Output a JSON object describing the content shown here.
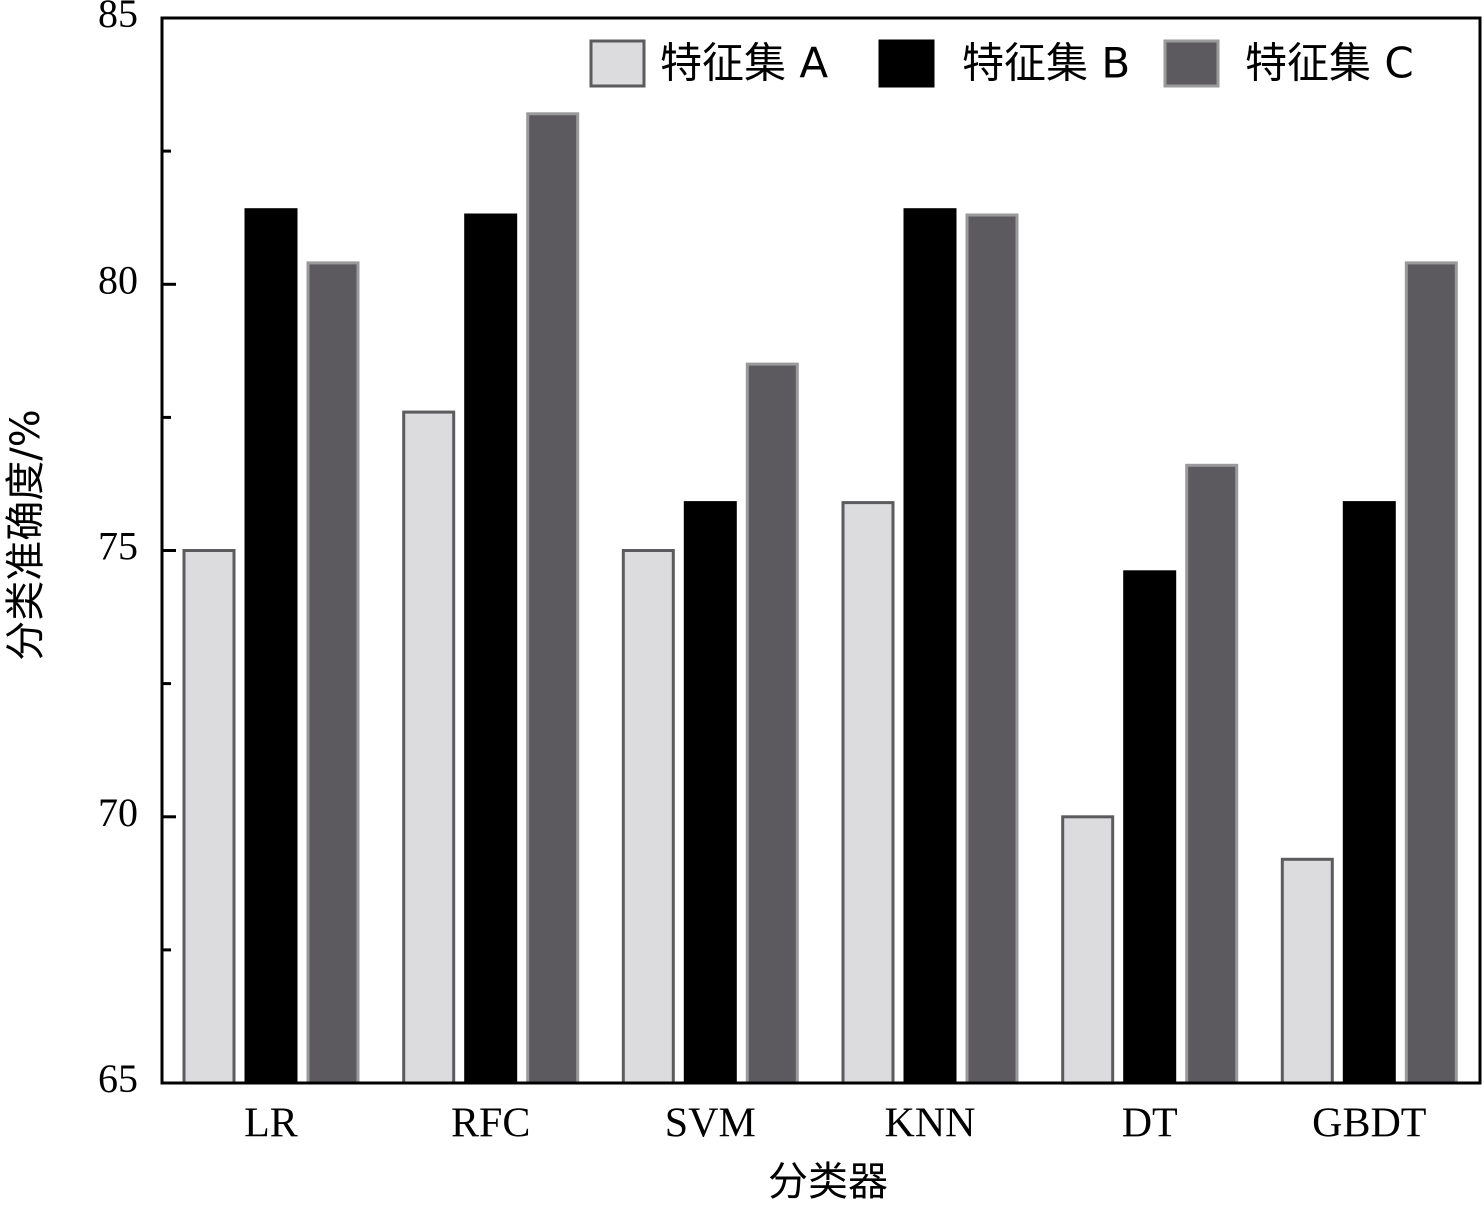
{
  "chart_data": {
    "type": "bar",
    "categories": [
      "LR",
      "RFC",
      "SVM",
      "KNN",
      "DT",
      "GBDT"
    ],
    "series": [
      {
        "name": "特征集 A",
        "values": [
          75.0,
          77.6,
          75.0,
          75.9,
          70.0,
          69.2
        ],
        "color": "#dcdbdd",
        "stroke": "#5c5b5e"
      },
      {
        "name": "特征集 B",
        "values": [
          81.4,
          81.3,
          75.9,
          81.4,
          74.6,
          75.9
        ],
        "color": "#000000",
        "stroke": "#000000"
      },
      {
        "name": "特征集 C",
        "values": [
          80.4,
          83.2,
          78.5,
          81.3,
          76.6,
          80.4
        ],
        "color": "#5c5a5e",
        "stroke": "#9a999b"
      }
    ],
    "xlabel": "分类器",
    "ylabel": "分类准确度/%",
    "ylim": [
      65,
      85
    ],
    "yticks": [
      65,
      70,
      75,
      80,
      85
    ],
    "y_minor_step": 2.5,
    "grid": false,
    "legend_position": "top-right"
  }
}
